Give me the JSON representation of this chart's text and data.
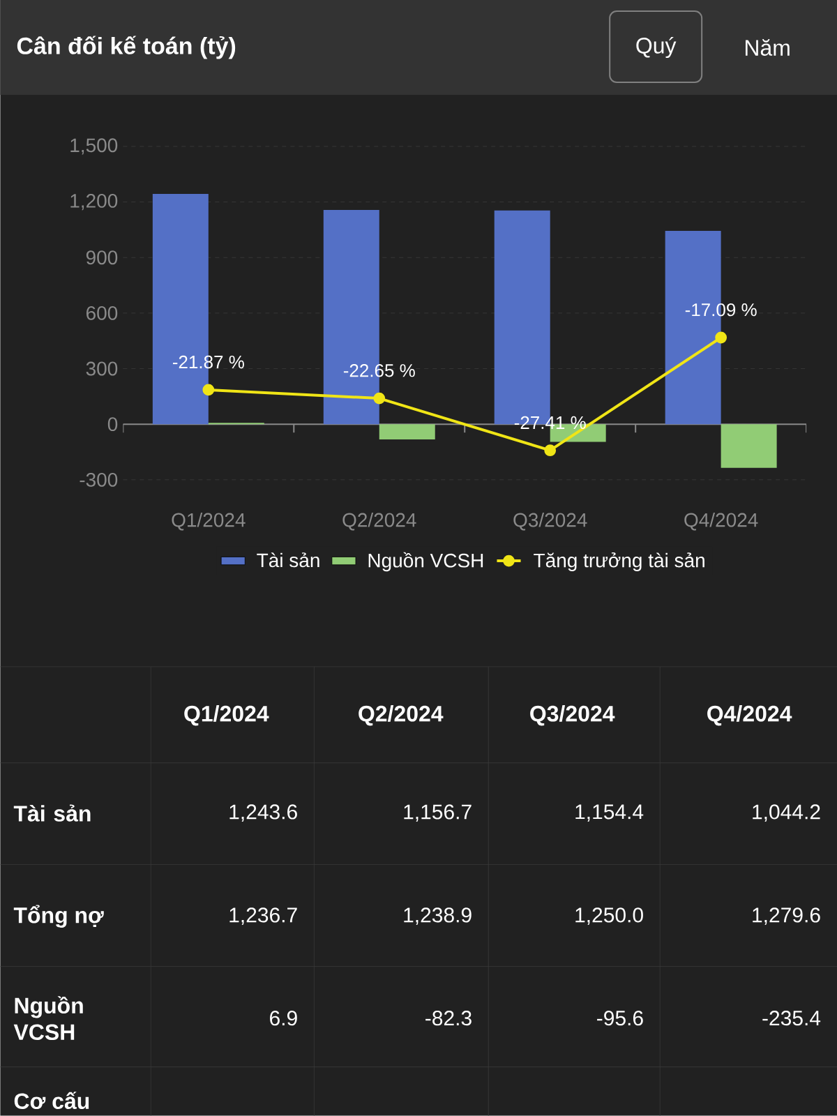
{
  "chart_data": {
    "type": "bar",
    "title": "Cân đối kế toán (tỷ)",
    "categories": [
      "Q1/2024",
      "Q2/2024",
      "Q3/2024",
      "Q4/2024"
    ],
    "series": [
      {
        "name": "Tài sản",
        "color": "#5470c6",
        "values": [
          1243.6,
          1156.7,
          1154.4,
          1044.2
        ],
        "value_labels": [
          "1,243.6",
          "1,156.7",
          "1,154.4",
          "1,044.2"
        ]
      },
      {
        "name": "Nguồn VCSH",
        "color": "#91cc75",
        "values": [
          6.9,
          -82.3,
          -95.6,
          -235.4
        ],
        "value_labels": [
          "6.9",
          "-82.3",
          "-95.6",
          "-235.4"
        ]
      },
      {
        "name": "Tăng trưởng tài sản",
        "type": "line",
        "axis": "y2",
        "color": "#f0e516",
        "values": [
          -21.87,
          -22.65,
          -27.41,
          -17.09
        ],
        "value_labels": [
          "-21.87 %",
          "-22.65 %",
          "-27.41 %",
          "-17.09 %"
        ]
      }
    ],
    "ylim": [
      -300,
      1500
    ],
    "yticks": [
      -300,
      0,
      300,
      600,
      900,
      {
        "value": 1200,
        "label": "1,200"
      },
      {
        "value": 1500,
        "label": "1,500"
      }
    ],
    "y2lim": [
      -30.1,
      0.4
    ],
    "grid": "y",
    "legend": "bottom",
    "marker": "circle",
    "annotations": [
      "Quý",
      "Năm",
      "Tổng nợ",
      "1,236.7",
      "1,238.9",
      "1,250.0",
      "1,279.6",
      "Cơ cấu"
    ]
  }
}
